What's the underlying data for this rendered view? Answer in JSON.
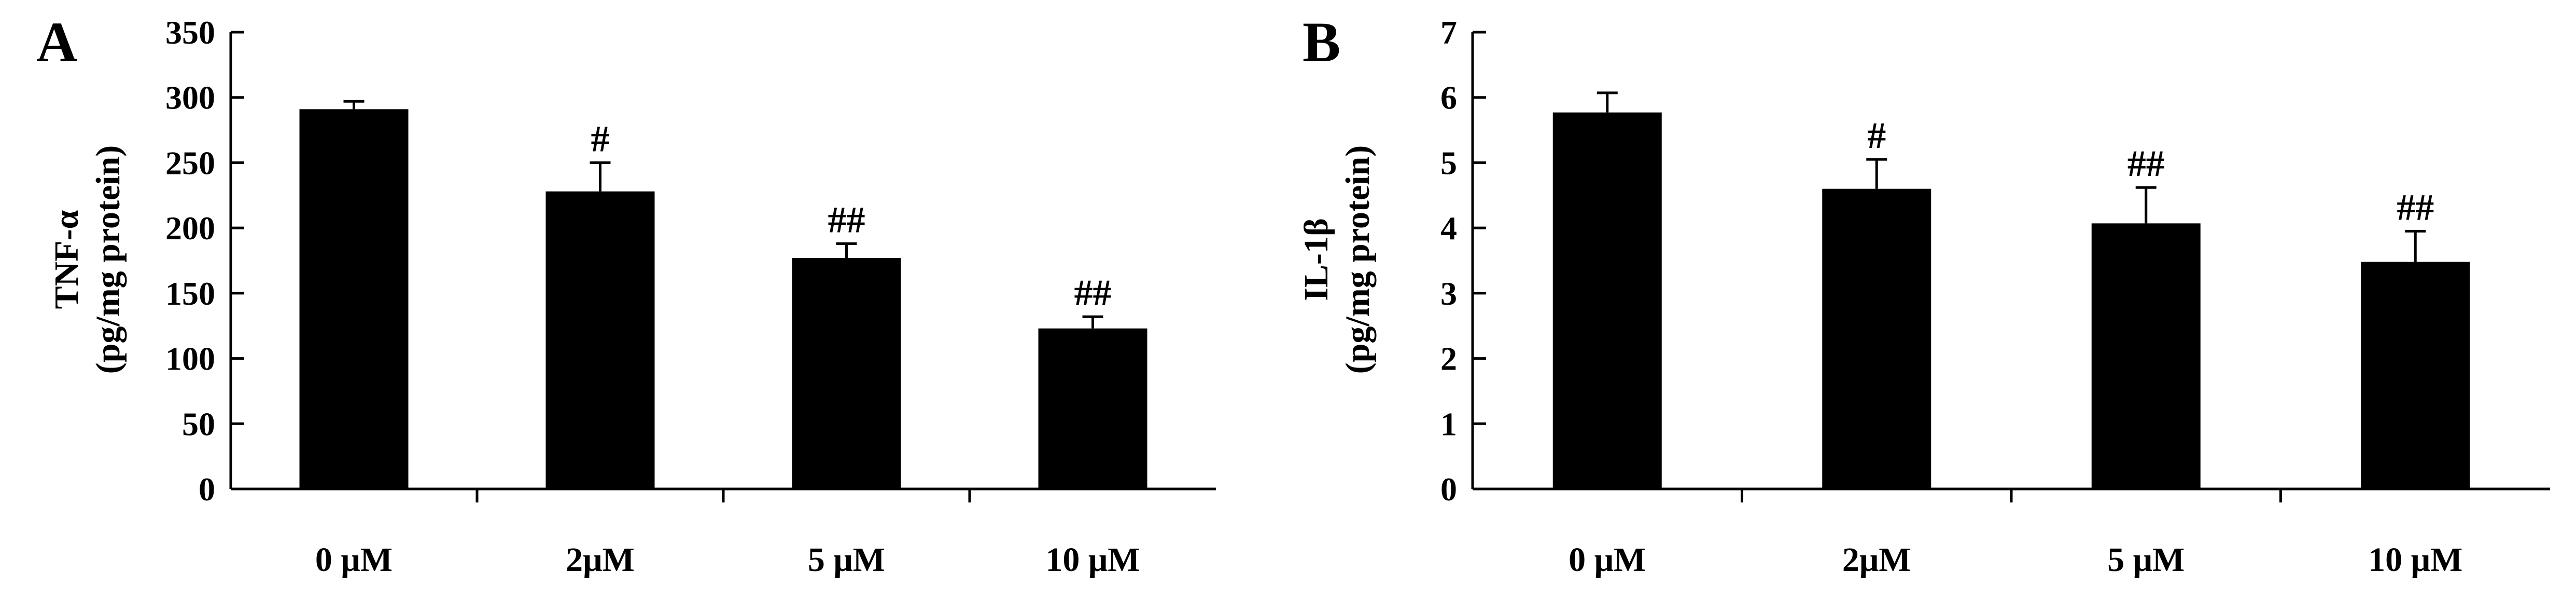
{
  "chart_data": [
    {
      "type": "bar",
      "panel_label": "A",
      "categories": [
        "0 μM",
        "2μM",
        "5 μM",
        "10 μM"
      ],
      "values": [
        291,
        228,
        177,
        123
      ],
      "errors": [
        6,
        22,
        11,
        9
      ],
      "annotations": [
        "",
        "#",
        "##",
        "##"
      ],
      "ylabel": [
        "TNF-α",
        "(pg/mg protein)"
      ],
      "ylim": [
        0,
        350
      ],
      "yticks": [
        0,
        50,
        100,
        150,
        200,
        250,
        300,
        350
      ],
      "bar_color": "#000000",
      "grid": false
    },
    {
      "type": "bar",
      "panel_label": "B",
      "categories": [
        "0 μM",
        "2μM",
        "5 μM",
        "10 μM"
      ],
      "values": [
        5.77,
        4.6,
        4.07,
        3.48
      ],
      "errors": [
        0.3,
        0.45,
        0.55,
        0.47
      ],
      "annotations": [
        "",
        "#",
        "##",
        "##"
      ],
      "ylabel": [
        "IL-1β",
        "(pg/mg protein)"
      ],
      "ylim": [
        0,
        7
      ],
      "yticks": [
        0,
        1,
        2,
        3,
        4,
        5,
        6,
        7
      ],
      "bar_color": "#000000",
      "grid": false
    }
  ]
}
